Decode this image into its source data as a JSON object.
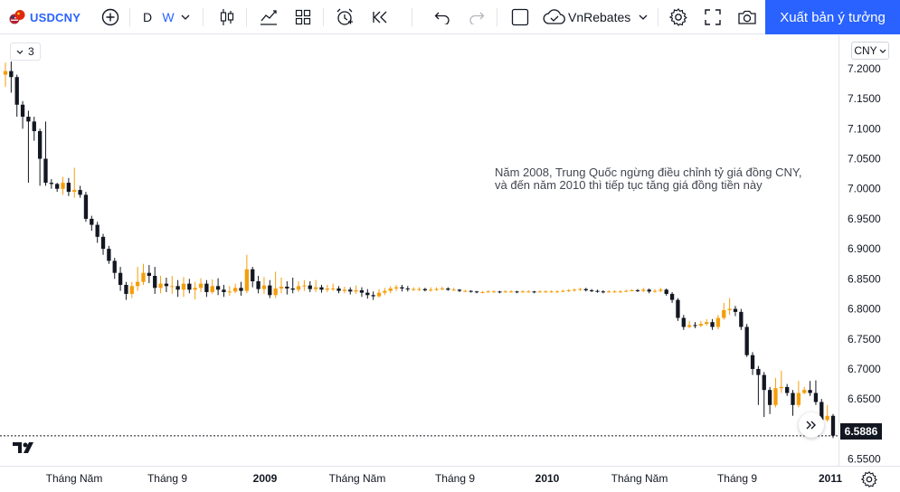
{
  "toolbar": {
    "symbol": "USDCNY",
    "timeframes": [
      "D",
      "W"
    ],
    "active_timeframe": "W",
    "layout_name": "VnRebates",
    "publish_label": "Xuất bản ý tưởng",
    "icons": [
      "symbol-logo-icon",
      "add-symbol-icon",
      "chevron-down-icon",
      "candles-icon",
      "indicators-icon",
      "layout-grid-icon",
      "alert-icon",
      "replay-icon",
      "undo-icon",
      "redo-icon",
      "square-icon",
      "cloud-icon",
      "settings-icon",
      "fullscreen-icon",
      "camera-icon"
    ]
  },
  "legend": {
    "count": "3"
  },
  "price_axis": {
    "currency": "CNY",
    "ticks": [
      "7.2000",
      "7.1500",
      "7.1000",
      "7.0500",
      "7.0000",
      "6.9500",
      "6.9000",
      "6.8500",
      "6.8000",
      "6.7500",
      "6.7000",
      "6.6500",
      "6.6000",
      "6.5500"
    ],
    "last_price": "6.5886",
    "range": [
      6.5388,
      7.2556
    ]
  },
  "time_axis": {
    "labels": [
      "Tháng Năm",
      "Tháng 9",
      "2009",
      "Tháng Năm",
      "Tháng 9",
      "2010",
      "Tháng Năm",
      "Tháng 9",
      "2011"
    ]
  },
  "annotation": {
    "line1": "Năm 2008, Trung Quốc ngừng điều chỉnh tỷ giá đồng CNY,",
    "line2": "và đến năm 2010 thì tiếp tục tăng giá đồng tiền này"
  },
  "colors": {
    "up": "#f59e0b",
    "down": "#131722",
    "accent": "#2962ff",
    "last_price_bg": "#131722"
  },
  "chart_data": {
    "type": "candlestick",
    "symbol": "USDCNY",
    "interval": "W",
    "y_range": [
      6.5388,
      7.2556
    ],
    "last_price": 6.5886,
    "candles": [
      [
        7.19,
        7.196,
        7.21,
        7.17
      ],
      [
        7.196,
        7.186,
        7.212,
        7.16
      ],
      [
        7.186,
        7.14,
        7.19,
        7.12
      ],
      [
        7.14,
        7.12,
        7.146,
        7.1
      ],
      [
        7.12,
        7.112,
        7.13,
        7.01
      ],
      [
        7.112,
        7.096,
        7.12,
        7.08
      ],
      [
        7.096,
        7.05,
        7.1,
        7.005
      ],
      [
        7.05,
        7.01,
        7.112,
        7.005
      ],
      [
        7.01,
        7.008,
        7.016,
        7.0
      ],
      [
        7.008,
        7.0,
        7.01,
        6.995
      ],
      [
        7.0,
        7.01,
        7.02,
        6.99
      ],
      [
        7.01,
        6.995,
        7.018,
        6.988
      ],
      [
        6.995,
        6.998,
        7.035,
        6.985
      ],
      [
        6.998,
        6.99,
        7.005,
        6.985
      ],
      [
        6.99,
        6.95,
        6.995,
        6.945
      ],
      [
        6.95,
        6.94,
        6.955,
        6.93
      ],
      [
        6.94,
        6.92,
        6.945,
        6.91
      ],
      [
        6.92,
        6.9,
        6.925,
        6.89
      ],
      [
        6.9,
        6.88,
        6.905,
        6.875
      ],
      [
        6.88,
        6.86,
        6.885,
        6.85
      ],
      [
        6.86,
        6.84,
        6.87,
        6.83
      ],
      [
        6.84,
        6.825,
        6.845,
        6.815
      ],
      [
        6.825,
        6.838,
        6.845,
        6.818
      ],
      [
        6.838,
        6.845,
        6.87,
        6.83
      ],
      [
        6.845,
        6.86,
        6.875,
        6.84
      ],
      [
        6.86,
        6.855,
        6.873,
        6.843
      ],
      [
        6.855,
        6.835,
        6.87,
        6.825
      ],
      [
        6.835,
        6.842,
        6.855,
        6.826
      ],
      [
        6.842,
        6.838,
        6.852,
        6.828
      ],
      [
        6.838,
        6.838,
        6.855,
        6.825
      ],
      [
        6.838,
        6.832,
        6.848,
        6.82
      ],
      [
        6.832,
        6.842,
        6.853,
        6.82
      ],
      [
        6.842,
        6.832,
        6.85,
        6.826
      ],
      [
        6.832,
        6.835,
        6.845,
        6.816
      ],
      [
        6.835,
        6.842,
        6.851,
        6.828
      ],
      [
        6.842,
        6.828,
        6.848,
        6.82
      ],
      [
        6.828,
        6.838,
        6.849,
        6.825
      ],
      [
        6.838,
        6.832,
        6.851,
        6.823
      ],
      [
        6.832,
        6.828,
        6.84,
        6.82
      ],
      [
        6.828,
        6.829,
        6.838,
        6.822
      ],
      [
        6.829,
        6.835,
        6.842,
        6.826
      ],
      [
        6.835,
        6.83,
        6.845,
        6.822
      ],
      [
        6.83,
        6.866,
        6.89,
        6.826
      ],
      [
        6.866,
        6.846,
        6.87,
        6.836
      ],
      [
        6.846,
        6.833,
        6.855,
        6.826
      ],
      [
        6.833,
        6.839,
        6.853,
        6.825
      ],
      [
        6.839,
        6.823,
        6.848,
        6.818
      ],
      [
        6.823,
        6.834,
        6.862,
        6.818
      ],
      [
        6.834,
        6.837,
        6.852,
        6.826
      ],
      [
        6.837,
        6.834,
        6.846,
        6.824
      ],
      [
        6.834,
        6.832,
        6.852,
        6.826
      ],
      [
        6.832,
        6.838,
        6.846,
        6.828
      ],
      [
        6.838,
        6.839,
        6.848,
        6.83
      ],
      [
        6.839,
        6.833,
        6.846,
        6.828
      ],
      [
        6.833,
        6.836,
        6.848,
        6.828
      ],
      [
        6.836,
        6.832,
        6.84,
        6.827
      ],
      [
        6.832,
        6.834,
        6.84,
        6.828
      ],
      [
        6.834,
        6.834,
        6.842,
        6.83
      ],
      [
        6.834,
        6.83,
        6.838,
        6.826
      ],
      [
        6.83,
        6.832,
        6.837,
        6.826
      ],
      [
        6.832,
        6.829,
        6.836,
        6.824
      ],
      [
        6.829,
        6.831,
        6.839,
        6.825
      ],
      [
        6.831,
        6.827,
        6.836,
        6.82
      ],
      [
        6.827,
        6.823,
        6.833,
        6.817
      ],
      [
        6.823,
        6.821,
        6.829,
        6.815
      ],
      [
        6.821,
        6.827,
        6.833,
        6.819
      ],
      [
        6.827,
        6.83,
        6.835,
        6.823
      ],
      [
        6.83,
        6.834,
        6.838,
        6.826
      ],
      [
        6.834,
        6.836,
        6.84,
        6.83
      ],
      [
        6.836,
        6.834,
        6.84,
        6.829
      ],
      [
        6.834,
        6.833,
        6.838,
        6.829
      ],
      [
        6.833,
        6.833,
        6.836,
        6.83
      ],
      [
        6.833,
        6.833,
        6.836,
        6.83
      ],
      [
        6.833,
        6.831,
        6.835,
        6.829
      ],
      [
        6.831,
        6.832,
        6.836,
        6.829
      ],
      [
        6.832,
        6.833,
        6.836,
        6.83
      ],
      [
        6.833,
        6.834,
        6.837,
        6.831
      ],
      [
        6.834,
        6.832,
        6.836,
        6.83
      ],
      [
        6.832,
        6.832,
        6.835,
        6.83
      ],
      [
        6.832,
        6.83,
        6.833,
        6.828
      ],
      [
        6.83,
        6.83,
        6.832,
        6.828
      ],
      [
        6.83,
        6.829,
        6.831,
        6.827
      ],
      [
        6.829,
        6.828,
        6.83,
        6.826
      ],
      [
        6.828,
        6.828,
        6.83,
        6.826
      ],
      [
        6.828,
        6.829,
        6.831,
        6.827
      ],
      [
        6.829,
        6.829,
        6.831,
        6.827
      ],
      [
        6.829,
        6.828,
        6.83,
        6.826
      ],
      [
        6.828,
        6.829,
        6.831,
        6.827
      ],
      [
        6.829,
        6.829,
        6.831,
        6.827
      ],
      [
        6.829,
        6.828,
        6.83,
        6.826
      ],
      [
        6.828,
        6.829,
        6.831,
        6.827
      ],
      [
        6.829,
        6.829,
        6.831,
        6.827
      ],
      [
        6.829,
        6.828,
        6.83,
        6.826
      ],
      [
        6.828,
        6.829,
        6.831,
        6.827
      ],
      [
        6.829,
        6.829,
        6.831,
        6.827
      ],
      [
        6.829,
        6.829,
        6.831,
        6.827
      ],
      [
        6.829,
        6.829,
        6.831,
        6.827
      ],
      [
        6.829,
        6.83,
        6.832,
        6.828
      ],
      [
        6.83,
        6.831,
        6.833,
        6.828
      ],
      [
        6.831,
        6.832,
        6.834,
        6.829
      ],
      [
        6.832,
        6.833,
        6.835,
        6.83
      ],
      [
        6.833,
        6.831,
        6.835,
        6.829
      ],
      [
        6.831,
        6.83,
        6.833,
        6.828
      ],
      [
        6.83,
        6.829,
        6.832,
        6.827
      ],
      [
        6.829,
        6.828,
        6.831,
        6.826
      ],
      [
        6.828,
        6.829,
        6.831,
        6.827
      ],
      [
        6.829,
        6.829,
        6.831,
        6.827
      ],
      [
        6.829,
        6.829,
        6.831,
        6.827
      ],
      [
        6.829,
        6.83,
        6.832,
        6.828
      ],
      [
        6.83,
        6.831,
        6.833,
        6.829
      ],
      [
        6.831,
        6.83,
        6.833,
        6.828
      ],
      [
        6.83,
        6.832,
        6.835,
        6.828
      ],
      [
        6.832,
        6.829,
        6.834,
        6.826
      ],
      [
        6.829,
        6.83,
        6.833,
        6.827
      ],
      [
        6.83,
        6.832,
        6.835,
        6.828
      ],
      [
        6.832,
        6.825,
        6.834,
        6.822
      ],
      [
        6.825,
        6.815,
        6.828,
        6.81
      ],
      [
        6.815,
        6.785,
        6.818,
        6.78
      ],
      [
        6.785,
        6.77,
        6.79,
        6.765
      ],
      [
        6.77,
        6.773,
        6.78,
        6.768
      ],
      [
        6.773,
        6.772,
        6.778,
        6.768
      ],
      [
        6.772,
        6.775,
        6.78,
        6.77
      ],
      [
        6.775,
        6.778,
        6.783,
        6.772
      ],
      [
        6.778,
        6.77,
        6.783,
        6.765
      ],
      [
        6.77,
        6.785,
        6.79,
        6.766
      ],
      [
        6.785,
        6.798,
        6.81,
        6.782
      ],
      [
        6.798,
        6.8,
        6.818,
        6.79
      ],
      [
        6.8,
        6.795,
        6.805,
        6.788
      ],
      [
        6.795,
        6.77,
        6.8,
        6.765
      ],
      [
        6.77,
        6.723,
        6.775,
        6.72
      ],
      [
        6.723,
        6.7,
        6.728,
        6.69
      ],
      [
        6.7,
        6.69,
        6.705,
        6.64
      ],
      [
        6.69,
        6.665,
        6.695,
        6.62
      ],
      [
        6.665,
        6.64,
        6.67,
        6.625
      ],
      [
        6.64,
        6.668,
        6.685,
        6.636
      ],
      [
        6.668,
        6.67,
        6.697,
        6.66
      ],
      [
        6.67,
        6.66,
        6.675,
        6.655
      ],
      [
        6.66,
        6.64,
        6.665,
        6.622
      ],
      [
        6.64,
        6.66,
        6.68,
        6.636
      ],
      [
        6.66,
        6.665,
        6.67,
        6.658
      ],
      [
        6.665,
        6.66,
        6.68,
        6.655
      ],
      [
        6.66,
        6.645,
        6.681,
        6.64
      ],
      [
        6.645,
        6.615,
        6.65,
        6.612
      ],
      [
        6.615,
        6.622,
        6.64,
        6.612
      ],
      [
        6.622,
        6.589,
        6.625,
        6.585
      ]
    ]
  }
}
